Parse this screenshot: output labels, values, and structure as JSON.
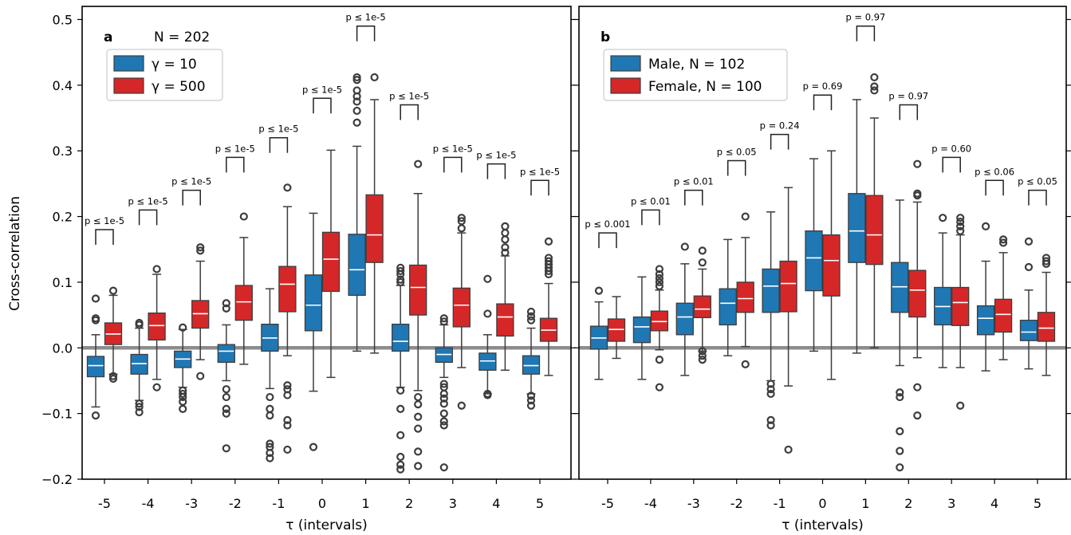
{
  "colors": {
    "blue": "#1f77b4",
    "red": "#d62728",
    "edge": "#3d3d3d",
    "zero_line": "#8c8c8c"
  },
  "chart_data": [
    {
      "type": "box",
      "panel_label": "a",
      "annotation": "N = 202",
      "xlabel": "τ (intervals)",
      "ylabel": "Cross-correlation",
      "ylim": [
        -0.2,
        0.52
      ],
      "yticks": [
        "0.5",
        "0.4",
        "0.3",
        "0.2",
        "0.1",
        "0.0",
        "−0.1",
        "−0.2"
      ],
      "categories": [
        "-5",
        "-4",
        "-3",
        "-2",
        "-1",
        "0",
        "1",
        "2",
        "3",
        "4",
        "5"
      ],
      "legend_position": "upper left",
      "series": [
        {
          "name": "γ = 10",
          "color": "#1f77b4",
          "boxes": [
            {
              "wlo": -0.09,
              "q1": -0.044,
              "med": -0.027,
              "q3": -0.013,
              "whi": 0.02,
              "fliers": [
                0.075,
                0.045,
                0.042,
                -0.103
              ]
            },
            {
              "wlo": -0.08,
              "q1": -0.04,
              "med": -0.024,
              "q3": -0.01,
              "whi": 0.03,
              "fliers": [
                0.038,
                0.035,
                -0.085,
                -0.09,
                -0.098
              ]
            },
            {
              "wlo": -0.06,
              "q1": -0.03,
              "med": -0.017,
              "q3": -0.005,
              "whi": 0.028,
              "fliers": [
                0.031,
                -0.065,
                -0.07,
                -0.075,
                -0.082,
                -0.093
              ]
            },
            {
              "wlo": -0.05,
              "q1": -0.022,
              "med": -0.005,
              "q3": 0.005,
              "whi": 0.035,
              "fliers": [
                0.068,
                0.06,
                -0.063,
                -0.075,
                -0.093,
                -0.1,
                -0.153
              ]
            },
            {
              "wlo": -0.062,
              "q1": -0.005,
              "med": 0.015,
              "q3": 0.036,
              "whi": 0.09,
              "fliers": [
                -0.075,
                -0.093,
                -0.103,
                -0.146,
                -0.151,
                -0.16,
                -0.168
              ]
            },
            {
              "wlo": -0.066,
              "q1": 0.026,
              "med": 0.065,
              "q3": 0.111,
              "whi": 0.205,
              "fliers": [
                -0.151
              ]
            },
            {
              "wlo": -0.005,
              "q1": 0.08,
              "med": 0.119,
              "q3": 0.173,
              "whi": 0.307,
              "fliers": [
                0.412,
                0.408,
                0.392,
                0.383,
                0.375,
                0.361,
                0.343
              ]
            },
            {
              "wlo": -0.06,
              "q1": -0.005,
              "med": 0.01,
              "q3": 0.036,
              "whi": 0.095,
              "fliers": [
                0.122,
                0.117,
                0.112,
                0.104,
                0.1,
                -0.065,
                -0.093,
                -0.133,
                -0.166,
                -0.178,
                -0.185
              ]
            },
            {
              "wlo": -0.045,
              "q1": -0.022,
              "med": -0.01,
              "q3": 0.0,
              "whi": 0.035,
              "fliers": [
                0.045,
                0.04,
                -0.055,
                -0.06,
                -0.07,
                -0.077,
                -0.085,
                -0.1,
                -0.112,
                -0.118,
                -0.182
              ]
            },
            {
              "wlo": -0.07,
              "q1": -0.034,
              "med": -0.02,
              "q3": -0.008,
              "whi": 0.02,
              "fliers": [
                0.105,
                0.052,
                -0.07,
                -0.072
              ]
            },
            {
              "wlo": -0.07,
              "q1": -0.04,
              "med": -0.027,
              "q3": -0.012,
              "whi": 0.03,
              "fliers": [
                0.055,
                0.048,
                0.042,
                -0.073,
                -0.08,
                -0.088
              ]
            }
          ]
        },
        {
          "name": "γ = 500",
          "color": "#d62728",
          "boxes": [
            {
              "wlo": -0.04,
              "q1": 0.005,
              "med": 0.021,
              "q3": 0.038,
              "whi": 0.08,
              "fliers": [
                0.087,
                -0.043,
                -0.047
              ]
            },
            {
              "wlo": -0.048,
              "q1": 0.012,
              "med": 0.034,
              "q3": 0.053,
              "whi": 0.112,
              "fliers": [
                0.12,
                -0.06
              ]
            },
            {
              "wlo": -0.018,
              "q1": 0.03,
              "med": 0.052,
              "q3": 0.072,
              "whi": 0.132,
              "fliers": [
                0.153,
                0.148,
                -0.043
              ]
            },
            {
              "wlo": -0.025,
              "q1": 0.042,
              "med": 0.07,
              "q3": 0.095,
              "whi": 0.168,
              "fliers": [
                0.2
              ]
            },
            {
              "wlo": -0.012,
              "q1": 0.055,
              "med": 0.097,
              "q3": 0.124,
              "whi": 0.215,
              "fliers": [
                0.244,
                -0.057,
                -0.063,
                -0.072,
                -0.11,
                -0.118,
                -0.155
              ]
            },
            {
              "wlo": -0.045,
              "q1": 0.086,
              "med": 0.135,
              "q3": 0.176,
              "whi": 0.301,
              "fliers": []
            },
            {
              "wlo": -0.008,
              "q1": 0.13,
              "med": 0.172,
              "q3": 0.233,
              "whi": 0.378,
              "fliers": [
                0.412
              ]
            },
            {
              "wlo": -0.065,
              "q1": 0.05,
              "med": 0.092,
              "q3": 0.126,
              "whi": 0.235,
              "fliers": [
                0.28,
                -0.075,
                -0.086,
                -0.105,
                -0.123,
                -0.158,
                -0.18
              ]
            },
            {
              "wlo": -0.03,
              "q1": 0.032,
              "med": 0.065,
              "q3": 0.091,
              "whi": 0.175,
              "fliers": [
                0.198,
                0.193,
                0.182,
                -0.088
              ]
            },
            {
              "wlo": -0.034,
              "q1": 0.018,
              "med": 0.047,
              "q3": 0.067,
              "whi": 0.14,
              "fliers": [
                0.185,
                0.175,
                0.165,
                0.153,
                0.145
              ]
            },
            {
              "wlo": -0.042,
              "q1": 0.01,
              "med": 0.027,
              "q3": 0.045,
              "whi": 0.098,
              "fliers": [
                0.162,
                0.137,
                0.132,
                0.127,
                0.122,
                0.117,
                0.112
              ]
            }
          ]
        }
      ],
      "pvalues": [
        "p ≤ 1e-5",
        "p ≤ 1e-5",
        "p ≤ 1e-5",
        "p ≤ 1e-5",
        "p ≤ 1e-5",
        "p ≤ 1e-5",
        "p ≤ 1e-5",
        "p ≤ 1e-5",
        "p ≤ 1e-5",
        "p ≤ 1e-5",
        "p ≤ 1e-5"
      ],
      "bracket_y": [
        0.18,
        0.21,
        0.24,
        0.29,
        0.32,
        0.38,
        0.49,
        0.37,
        0.29,
        0.28,
        0.255
      ]
    },
    {
      "type": "box",
      "panel_label": "b",
      "xlabel": "τ (intervals)",
      "ylim": [
        -0.2,
        0.52
      ],
      "categories": [
        "-5",
        "-4",
        "-3",
        "-2",
        "-1",
        "0",
        "1",
        "2",
        "3",
        "4",
        "5"
      ],
      "legend_position": "upper left",
      "series": [
        {
          "name": "Male, N = 102",
          "color": "#1f77b4",
          "boxes": [
            {
              "wlo": -0.048,
              "q1": -0.002,
              "med": 0.015,
              "q3": 0.033,
              "whi": 0.07,
              "fliers": [
                0.087
              ]
            },
            {
              "wlo": -0.048,
              "q1": 0.008,
              "med": 0.032,
              "q3": 0.047,
              "whi": 0.108,
              "fliers": []
            },
            {
              "wlo": -0.042,
              "q1": 0.02,
              "med": 0.047,
              "q3": 0.068,
              "whi": 0.128,
              "fliers": [
                0.154
              ]
            },
            {
              "wlo": -0.012,
              "q1": 0.035,
              "med": 0.068,
              "q3": 0.09,
              "whi": 0.165,
              "fliers": []
            },
            {
              "wlo": -0.05,
              "q1": 0.054,
              "med": 0.094,
              "q3": 0.12,
              "whi": 0.207,
              "fliers": [
                -0.055,
                -0.063,
                -0.07,
                -0.11,
                -0.118
              ]
            },
            {
              "wlo": -0.005,
              "q1": 0.087,
              "med": 0.137,
              "q3": 0.178,
              "whi": 0.288,
              "fliers": []
            },
            {
              "wlo": -0.008,
              "q1": 0.13,
              "med": 0.178,
              "q3": 0.235,
              "whi": 0.378,
              "fliers": []
            },
            {
              "wlo": -0.027,
              "q1": 0.054,
              "med": 0.093,
              "q3": 0.13,
              "whi": 0.225,
              "fliers": [
                -0.068,
                -0.075,
                -0.127,
                -0.157,
                -0.182
              ]
            },
            {
              "wlo": -0.03,
              "q1": 0.035,
              "med": 0.063,
              "q3": 0.092,
              "whi": 0.175,
              "fliers": [
                0.198
              ]
            },
            {
              "wlo": -0.035,
              "q1": 0.02,
              "med": 0.045,
              "q3": 0.064,
              "whi": 0.132,
              "fliers": [
                0.185
              ]
            },
            {
              "wlo": -0.032,
              "q1": 0.011,
              "med": 0.024,
              "q3": 0.042,
              "whi": 0.088,
              "fliers": [
                0.162,
                0.123
              ]
            }
          ]
        },
        {
          "name": "Female, N = 100",
          "color": "#d62728",
          "boxes": [
            {
              "wlo": -0.016,
              "q1": 0.01,
              "med": 0.028,
              "q3": 0.044,
              "whi": 0.078,
              "fliers": []
            },
            {
              "wlo": -0.003,
              "q1": 0.026,
              "med": 0.04,
              "q3": 0.056,
              "whi": 0.088,
              "fliers": [
                0.12,
                0.112,
                0.106,
                0.1,
                0.094,
                -0.018,
                -0.06
              ]
            },
            {
              "wlo": -0.005,
              "q1": 0.046,
              "med": 0.059,
              "q3": 0.079,
              "whi": 0.12,
              "fliers": [
                0.148,
                0.13,
                -0.005,
                -0.012,
                -0.018
              ]
            },
            {
              "wlo": 0.002,
              "q1": 0.054,
              "med": 0.075,
              "q3": 0.1,
              "whi": 0.168,
              "fliers": [
                0.2,
                -0.025
              ]
            },
            {
              "wlo": -0.058,
              "q1": 0.055,
              "med": 0.098,
              "q3": 0.132,
              "whi": 0.244,
              "fliers": [
                -0.155
              ]
            },
            {
              "wlo": -0.048,
              "q1": 0.079,
              "med": 0.133,
              "q3": 0.172,
              "whi": 0.3,
              "fliers": []
            },
            {
              "wlo": 0.0,
              "q1": 0.127,
              "med": 0.172,
              "q3": 0.232,
              "whi": 0.35,
              "fliers": [
                0.412,
                0.398,
                0.392
              ]
            },
            {
              "wlo": -0.015,
              "q1": 0.047,
              "med": 0.088,
              "q3": 0.118,
              "whi": 0.222,
              "fliers": [
                0.28,
                0.235,
                0.232,
                -0.06,
                -0.103
              ]
            },
            {
              "wlo": -0.03,
              "q1": 0.034,
              "med": 0.069,
              "q3": 0.092,
              "whi": 0.172,
              "fliers": [
                0.198,
                0.185,
                0.178,
                0.192,
                -0.088
              ]
            },
            {
              "wlo": -0.018,
              "q1": 0.024,
              "med": 0.051,
              "q3": 0.074,
              "whi": 0.145,
              "fliers": [
                0.165,
                0.16
              ]
            },
            {
              "wlo": -0.042,
              "q1": 0.01,
              "med": 0.03,
              "q3": 0.054,
              "whi": 0.115,
              "fliers": [
                0.137,
                0.132,
                0.128
              ]
            }
          ]
        }
      ],
      "pvalues": [
        "p ≤ 0.001",
        "p ≤ 0.01",
        "p ≤ 0.01",
        "p ≤ 0.05",
        "p = 0.24",
        "p = 0.69",
        "p = 0.97",
        "p = 0.97",
        "p = 0.60",
        "p ≤ 0.06",
        "p ≤ 0.05"
      ],
      "bracket_y": [
        0.175,
        0.21,
        0.24,
        0.285,
        0.325,
        0.385,
        0.49,
        0.37,
        0.29,
        0.255,
        0.24
      ]
    }
  ]
}
